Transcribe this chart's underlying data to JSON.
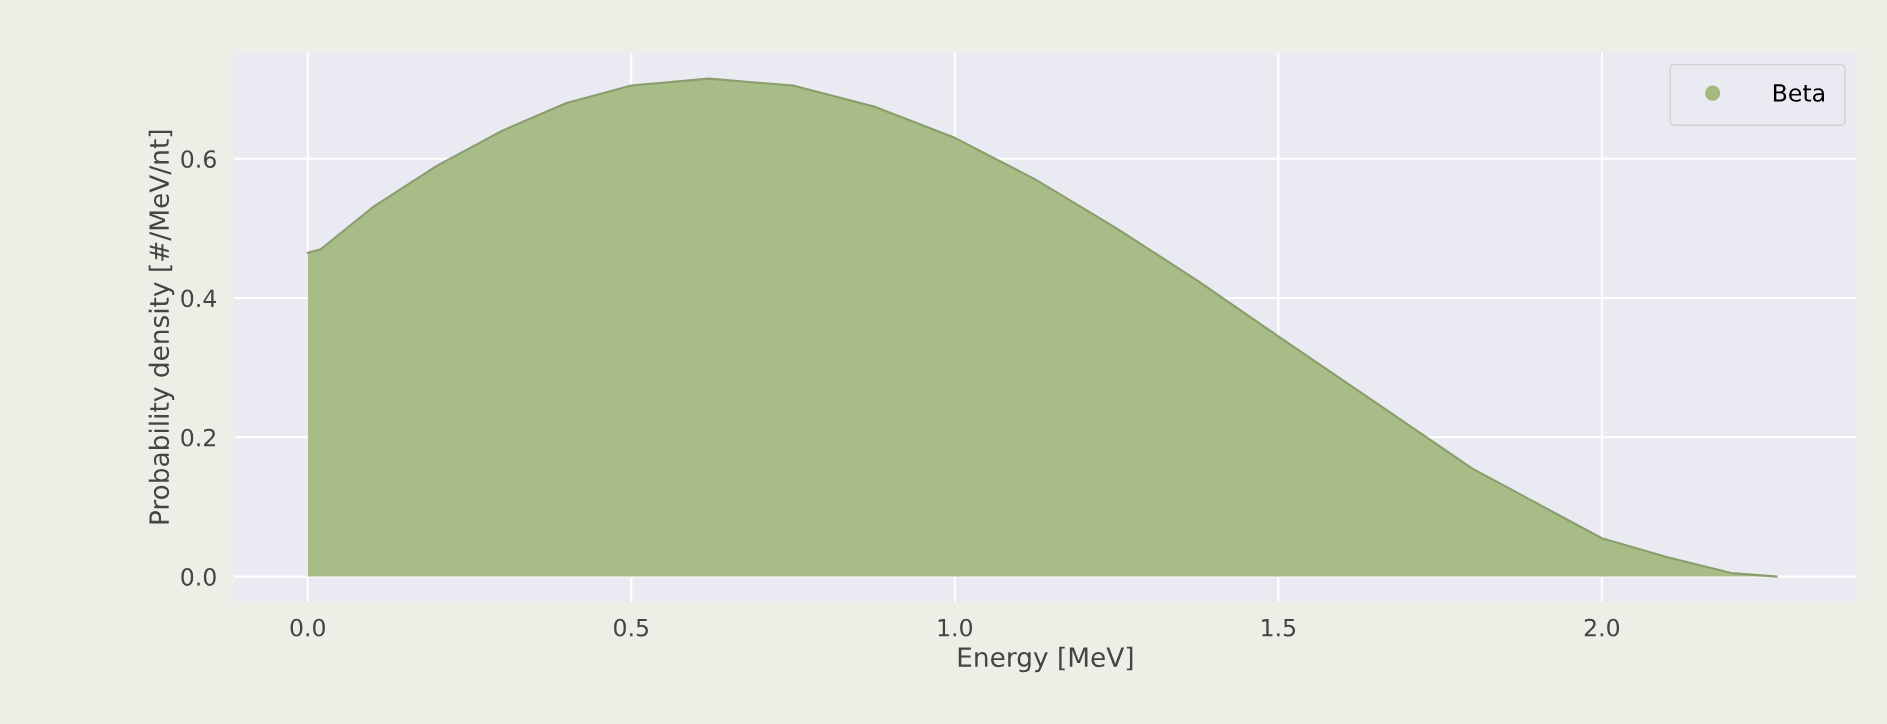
{
  "chart_data": {
    "type": "area",
    "xlabel": "Energy [MeV]",
    "ylabel": "Probability density [#/MeV/nt]",
    "x": [
      0,
      0.02,
      0.1,
      0.2,
      0.3,
      0.4,
      0.5,
      0.62,
      0.75,
      0.875,
      1.0,
      1.125,
      1.25,
      1.375,
      1.5,
      1.65,
      1.8,
      1.9,
      2.0,
      2.1,
      2.2,
      2.27
    ],
    "series": [
      {
        "name": "Beta",
        "color": "#a3b97f",
        "values": [
          0.465,
          0.47,
          0.53,
          0.59,
          0.64,
          0.68,
          0.705,
          0.715,
          0.705,
          0.675,
          0.63,
          0.57,
          0.5,
          0.425,
          0.345,
          0.25,
          0.155,
          0.105,
          0.055,
          0.028,
          0.005,
          0
        ]
      }
    ],
    "xlim": [
      -0.114,
      2.394
    ],
    "ylim": [
      -0.036,
      0.752
    ],
    "xticks": [
      {
        "value": 0,
        "label": "0.0"
      },
      0.5,
      {
        "value": 1,
        "label": "1.0"
      },
      1.5,
      {
        "value": 2,
        "label": "2.0"
      }
    ],
    "yticks": [
      {
        "value": 0,
        "label": "0.0"
      },
      0.2,
      0.4,
      0.6
    ],
    "grid": true,
    "legend": "top right"
  }
}
